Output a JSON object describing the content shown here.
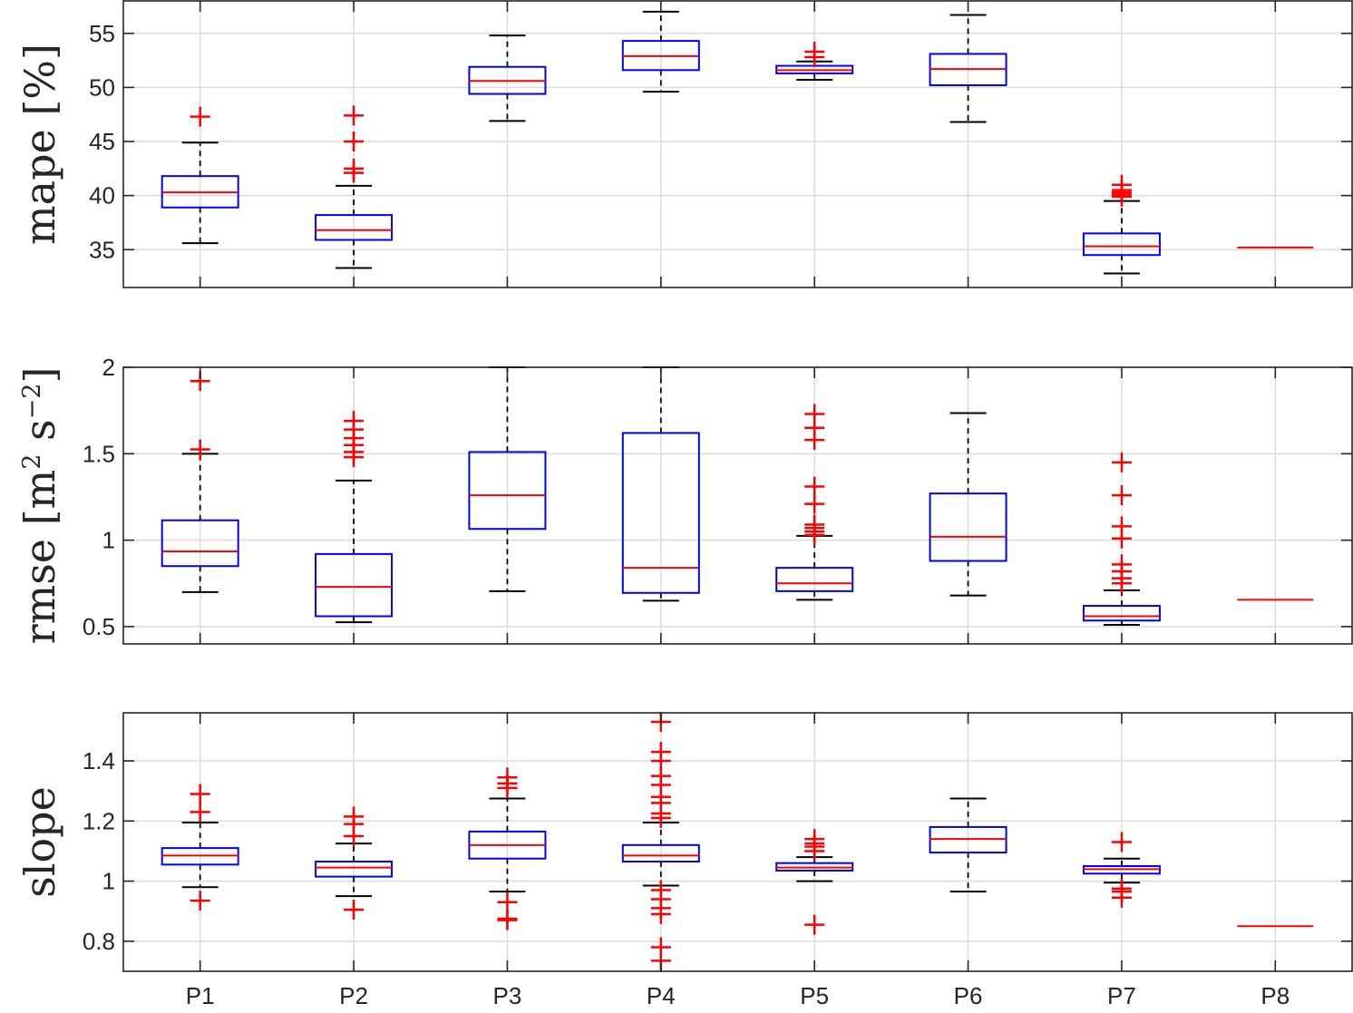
{
  "colors": {
    "box": "#0000ff",
    "median": "#ff0000",
    "outlier": "#ff0000",
    "whisker": "#000000",
    "grid": "#dcdcdc",
    "axis": "#262626",
    "background": "#ffffff"
  },
  "chart_data": [
    {
      "type": "boxplot",
      "ylabel": "mape [%]",
      "ylim": [
        31.5,
        58.0
      ],
      "yticks": [
        35,
        40,
        45,
        50,
        55
      ],
      "ytick_labels": [
        "35",
        "40",
        "45",
        "50",
        "55"
      ],
      "grid": true,
      "categories": [
        "P1",
        "P2",
        "P3",
        "P4",
        "P5",
        "P6",
        "P7",
        "P8"
      ],
      "boxes": [
        {
          "whisker_low": 35.6,
          "q1": 38.9,
          "median": 40.3,
          "q3": 41.8,
          "whisker_high": 44.9,
          "outliers": [
            47.3
          ]
        },
        {
          "whisker_low": 33.3,
          "q1": 35.9,
          "median": 36.8,
          "q3": 38.2,
          "whisker_high": 40.9,
          "outliers": [
            42.1,
            42.5,
            45.0,
            47.4
          ]
        },
        {
          "whisker_low": 46.9,
          "q1": 49.4,
          "median": 50.6,
          "q3": 51.9,
          "whisker_high": 54.8,
          "outliers": []
        },
        {
          "whisker_low": 49.6,
          "q1": 51.6,
          "median": 52.9,
          "q3": 54.3,
          "whisker_high": 57.0,
          "outliers": []
        },
        {
          "whisker_low": 50.7,
          "q1": 51.3,
          "median": 51.6,
          "q3": 52.0,
          "whisker_high": 52.4,
          "outliers": [
            52.8,
            53.3
          ]
        },
        {
          "whisker_low": 46.8,
          "q1": 50.2,
          "median": 51.7,
          "q3": 53.1,
          "whisker_high": 56.7,
          "outliers": []
        },
        {
          "whisker_low": 32.8,
          "q1": 34.5,
          "median": 35.3,
          "q3": 36.5,
          "whisker_high": 39.5,
          "outliers": [
            39.9,
            40.1,
            40.3,
            40.5,
            41.0
          ]
        },
        {
          "whisker_low": 35.2,
          "q1": 35.2,
          "median": 35.2,
          "q3": 35.2,
          "whisker_high": 35.2,
          "outliers": []
        }
      ]
    },
    {
      "type": "boxplot",
      "ylabel": "rmse [m2 s−2]",
      "ylim": [
        0.4,
        2.0
      ],
      "yticks": [
        0.5,
        1,
        1.5,
        2
      ],
      "ytick_labels": [
        "0.5",
        "1",
        "1.5",
        "2"
      ],
      "grid": true,
      "categories": [
        "P1",
        "P2",
        "P3",
        "P4",
        "P5",
        "P6",
        "P7",
        "P8"
      ],
      "boxes": [
        {
          "whisker_low": 0.7,
          "q1": 0.85,
          "median": 0.935,
          "q3": 1.115,
          "whisker_high": 1.5,
          "outliers": [
            1.525,
            1.92
          ]
        },
        {
          "whisker_low": 0.525,
          "q1": 0.56,
          "median": 0.73,
          "q3": 0.92,
          "whisker_high": 1.345,
          "outliers": [
            1.48,
            1.51,
            1.55,
            1.59,
            1.64,
            1.69
          ]
        },
        {
          "whisker_low": 0.705,
          "q1": 1.065,
          "median": 1.26,
          "q3": 1.51,
          "whisker_high": 2.0,
          "outliers": []
        },
        {
          "whisker_low": 0.65,
          "q1": 0.695,
          "median": 0.84,
          "q3": 1.62,
          "whisker_high": 2.0,
          "outliers": []
        },
        {
          "whisker_low": 0.655,
          "q1": 0.705,
          "median": 0.75,
          "q3": 0.84,
          "whisker_high": 1.025,
          "outliers": [
            1.03,
            1.05,
            1.07,
            1.09,
            1.21,
            1.31,
            1.58,
            1.65,
            1.73
          ]
        },
        {
          "whisker_low": 0.68,
          "q1": 0.88,
          "median": 1.02,
          "q3": 1.27,
          "whisker_high": 1.735,
          "outliers": []
        },
        {
          "whisker_low": 0.51,
          "q1": 0.535,
          "median": 0.56,
          "q3": 0.62,
          "whisker_high": 0.71,
          "outliers": [
            0.75,
            0.78,
            0.82,
            0.86,
            1.01,
            1.08,
            1.26,
            1.45
          ]
        },
        {
          "whisker_low": 0.655,
          "q1": 0.655,
          "median": 0.655,
          "q3": 0.655,
          "whisker_high": 0.655,
          "outliers": []
        }
      ]
    },
    {
      "type": "boxplot",
      "ylabel": "slope",
      "ylim": [
        0.7,
        1.56
      ],
      "yticks": [
        0.8,
        1,
        1.2,
        1.4
      ],
      "ytick_labels": [
        "0.8",
        "1",
        "1.2",
        "1.4"
      ],
      "grid": true,
      "categories": [
        "P1",
        "P2",
        "P3",
        "P4",
        "P5",
        "P6",
        "P7",
        "P8"
      ],
      "xtick_labels": [
        "P1",
        "P2",
        "P3",
        "P4",
        "P5",
        "P6",
        "P7",
        "P8"
      ],
      "boxes": [
        {
          "whisker_low": 0.98,
          "q1": 1.055,
          "median": 1.085,
          "q3": 1.11,
          "whisker_high": 1.195,
          "outliers": [
            0.935,
            1.23,
            1.29
          ]
        },
        {
          "whisker_low": 0.95,
          "q1": 1.015,
          "median": 1.045,
          "q3": 1.065,
          "whisker_high": 1.125,
          "outliers": [
            0.905,
            1.15,
            1.19,
            1.215
          ]
        },
        {
          "whisker_low": 0.965,
          "q1": 1.075,
          "median": 1.12,
          "q3": 1.165,
          "whisker_high": 1.275,
          "outliers": [
            0.87,
            0.875,
            0.93,
            1.31,
            1.325,
            1.345
          ]
        },
        {
          "whisker_low": 0.985,
          "q1": 1.065,
          "median": 1.085,
          "q3": 1.12,
          "whisker_high": 1.195,
          "outliers": [
            0.735,
            0.78,
            0.89,
            0.91,
            0.94,
            0.97,
            1.21,
            1.225,
            1.26,
            1.28,
            1.32,
            1.35,
            1.4,
            1.43,
            1.53
          ]
        },
        {
          "whisker_low": 1.0,
          "q1": 1.035,
          "median": 1.045,
          "q3": 1.06,
          "whisker_high": 1.08,
          "outliers": [
            0.855,
            1.1,
            1.115,
            1.125,
            1.14
          ]
        },
        {
          "whisker_low": 0.965,
          "q1": 1.095,
          "median": 1.14,
          "q3": 1.18,
          "whisker_high": 1.275,
          "outliers": []
        },
        {
          "whisker_low": 0.995,
          "q1": 1.025,
          "median": 1.04,
          "q3": 1.05,
          "whisker_high": 1.075,
          "outliers": [
            0.945,
            0.965,
            0.975,
            1.13
          ]
        },
        {
          "whisker_low": 0.85,
          "q1": 0.85,
          "median": 0.85,
          "q3": 0.85,
          "whisker_high": 0.85,
          "outliers": []
        }
      ]
    }
  ]
}
